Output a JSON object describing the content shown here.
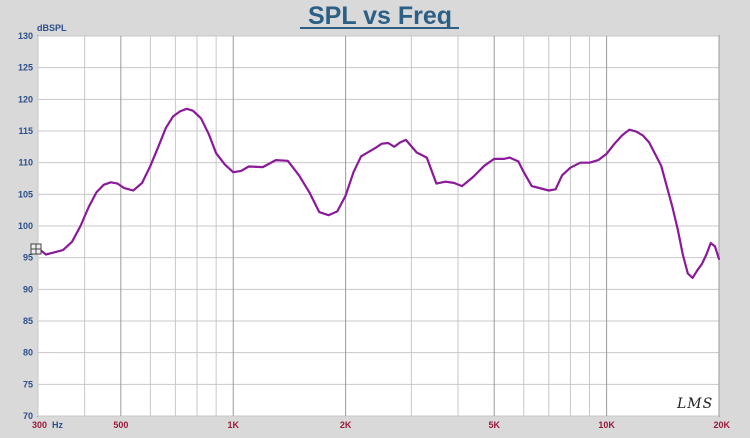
{
  "chart_data": {
    "type": "line",
    "title": "SPL vs Freq",
    "ylabel": "dBSPL",
    "xunit": "Hz",
    "xscale": "log",
    "xlim": [
      300,
      20000
    ],
    "ylim": [
      70,
      130
    ],
    "grid": true,
    "yticks": [
      "130",
      "125",
      "120",
      "115",
      "110",
      "105",
      "100",
      "95",
      "90",
      "85",
      "80",
      "75",
      "70"
    ],
    "xticks": [
      {
        "value": 300,
        "label": "300"
      },
      {
        "value": 500,
        "label": "500"
      },
      {
        "value": 1000,
        "label": "1K"
      },
      {
        "value": 2000,
        "label": "2K"
      },
      {
        "value": 5000,
        "label": "5K"
      },
      {
        "value": 10000,
        "label": "10K"
      },
      {
        "value": 20000,
        "label": "20K"
      }
    ],
    "series": [
      {
        "color": "#8b1a9a",
        "x": [
          300,
          315,
          330,
          350,
          370,
          390,
          410,
          430,
          450,
          470,
          490,
          510,
          540,
          570,
          600,
          630,
          660,
          690,
          720,
          750,
          780,
          820,
          860,
          900,
          950,
          1000,
          1050,
          1100,
          1200,
          1300,
          1400,
          1500,
          1600,
          1700,
          1800,
          1900,
          2000,
          2100,
          2200,
          2400,
          2500,
          2600,
          2700,
          2800,
          2900,
          3100,
          3300,
          3500,
          3700,
          3900,
          4100,
          4400,
          4700,
          5000,
          5300,
          5500,
          5800,
          6000,
          6300,
          6600,
          7000,
          7300,
          7600,
          8000,
          8500,
          9000,
          9500,
          10000,
          10500,
          11000,
          11500,
          12000,
          12500,
          13000,
          14000,
          15000,
          15500,
          16000,
          16500,
          17000,
          17500,
          18000,
          18500,
          19000,
          19500,
          20000
        ],
        "y": [
          96.5,
          95.5,
          95.8,
          96.2,
          97.5,
          100.0,
          103.0,
          105.3,
          106.5,
          106.9,
          106.7,
          106.0,
          105.6,
          106.8,
          109.5,
          112.5,
          115.5,
          117.3,
          118.1,
          118.5,
          118.2,
          117.0,
          114.5,
          111.5,
          109.7,
          108.5,
          108.7,
          109.4,
          109.3,
          110.4,
          110.3,
          108.0,
          105.3,
          102.2,
          101.7,
          102.3,
          104.8,
          108.5,
          111.0,
          112.3,
          113.0,
          113.1,
          112.5,
          113.2,
          113.6,
          111.6,
          110.8,
          106.7,
          107.0,
          106.8,
          106.3,
          107.8,
          109.5,
          110.6,
          110.6,
          110.8,
          110.2,
          108.5,
          106.3,
          106.0,
          105.6,
          105.8,
          108.0,
          109.2,
          110.0,
          110.0,
          110.4,
          111.4,
          113.0,
          114.3,
          115.2,
          114.9,
          114.3,
          113.2,
          109.5,
          103.0,
          99.5,
          95.5,
          92.5,
          91.8,
          93.0,
          94.0,
          95.5,
          97.3,
          96.8,
          94.8
        ]
      }
    ]
  },
  "logo": "LMS"
}
